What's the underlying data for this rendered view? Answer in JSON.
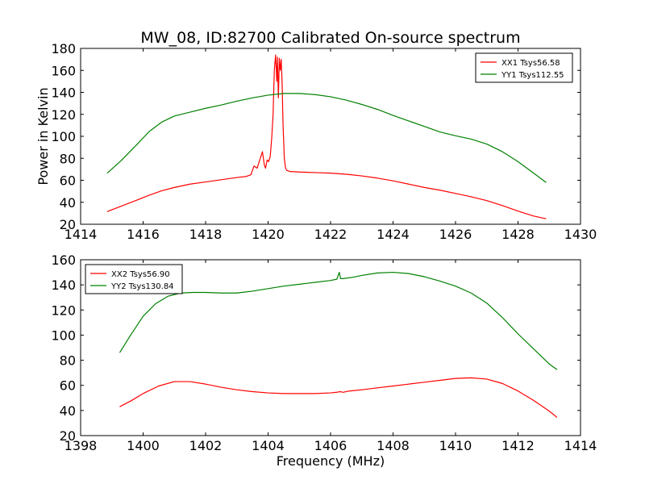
{
  "figure": {
    "title": "MW_08, ID:82700 Calibrated On-source spectrum"
  },
  "chart_data": [
    {
      "type": "line",
      "title": "MW_08, ID:82700 Calibrated On-source spectrum",
      "xlabel": "",
      "ylabel": "Power in Kelvin",
      "xlim": [
        1414,
        1430
      ],
      "ylim": [
        20,
        180
      ],
      "xticks": [
        1414,
        1416,
        1418,
        1420,
        1422,
        1424,
        1426,
        1428,
        1430
      ],
      "yticks": [
        20,
        40,
        60,
        80,
        100,
        120,
        140,
        160,
        180
      ],
      "legend": "top-right",
      "grid": false,
      "series": [
        {
          "name": "XX1 Tsys56.58",
          "color": "#ff0000",
          "x": [
            1414.85,
            1415.3,
            1415.8,
            1416.2,
            1416.6,
            1417.0,
            1417.5,
            1418.0,
            1418.5,
            1419.0,
            1419.3,
            1419.45,
            1419.55,
            1419.65,
            1419.75,
            1419.82,
            1419.88,
            1419.92,
            1419.97,
            1420.02,
            1420.07,
            1420.12,
            1420.16,
            1420.2,
            1420.24,
            1420.28,
            1420.3,
            1420.33,
            1420.36,
            1420.39,
            1420.42,
            1420.45,
            1420.48,
            1420.52,
            1420.56,
            1420.6,
            1420.7,
            1421.0,
            1421.5,
            1422.0,
            1422.5,
            1423.0,
            1423.5,
            1424.0,
            1424.5,
            1425.0,
            1425.5,
            1426.0,
            1426.5,
            1427.0,
            1427.5,
            1428.0,
            1428.5,
            1428.9
          ],
          "values": [
            31.5,
            36.5,
            42.0,
            46.5,
            50.5,
            53.5,
            56.5,
            58.5,
            60.5,
            62.5,
            63.5,
            65.0,
            73.0,
            71.0,
            80.0,
            86.0,
            74.0,
            71.0,
            78.5,
            77.0,
            82.0,
            100.0,
            120.0,
            160.0,
            174.0,
            150.0,
            172.0,
            135.0,
            171.0,
            160.0,
            170.0,
            148.0,
            110.0,
            80.0,
            71.0,
            69.0,
            68.0,
            67.5,
            67.0,
            66.5,
            65.5,
            64.0,
            62.0,
            59.5,
            56.5,
            53.5,
            51.0,
            48.0,
            45.0,
            41.5,
            37.0,
            32.0,
            27.5,
            25.0
          ]
        },
        {
          "name": "YY1 Tsys112.55",
          "color": "#008000",
          "x": [
            1414.85,
            1415.3,
            1415.8,
            1416.2,
            1416.6,
            1417.0,
            1417.5,
            1418.0,
            1418.5,
            1419.0,
            1419.5,
            1420.0,
            1420.5,
            1421.0,
            1421.5,
            1422.0,
            1422.5,
            1423.0,
            1423.5,
            1424.0,
            1424.5,
            1425.0,
            1425.5,
            1426.0,
            1426.5,
            1427.0,
            1427.5,
            1428.0,
            1428.5,
            1428.9
          ],
          "values": [
            66.5,
            78.0,
            92.5,
            104.5,
            113.0,
            118.5,
            122.0,
            125.5,
            128.5,
            132.0,
            135.0,
            137.5,
            139.0,
            139.0,
            138.0,
            136.0,
            133.0,
            129.0,
            124.5,
            119.0,
            114.0,
            109.0,
            104.0,
            100.5,
            97.5,
            93.0,
            86.0,
            77.0,
            66.5,
            58.0
          ]
        }
      ]
    },
    {
      "type": "line",
      "title": "",
      "xlabel": "Frequency (MHz)",
      "ylabel": "",
      "xlim": [
        1398,
        1414
      ],
      "ylim": [
        20,
        160
      ],
      "xticks": [
        1398,
        1400,
        1402,
        1404,
        1406,
        1408,
        1410,
        1412,
        1414
      ],
      "yticks": [
        20,
        40,
        60,
        80,
        100,
        120,
        140,
        160
      ],
      "legend": "top-left",
      "grid": false,
      "series": [
        {
          "name": "XX2 Tsys56.90",
          "color": "#ff0000",
          "x": [
            1399.25,
            1399.6,
            1400.0,
            1400.5,
            1401.0,
            1401.5,
            1402.0,
            1402.5,
            1403.0,
            1403.5,
            1404.0,
            1404.5,
            1405.0,
            1405.5,
            1406.0,
            1406.2,
            1406.3,
            1406.4,
            1406.6,
            1407.0,
            1407.5,
            1408.0,
            1408.5,
            1409.0,
            1409.5,
            1410.0,
            1410.5,
            1411.0,
            1411.5,
            1412.0,
            1412.5,
            1413.0,
            1413.25
          ],
          "values": [
            43.0,
            47.5,
            53.5,
            59.5,
            63.0,
            63.0,
            61.0,
            58.5,
            56.5,
            55.0,
            54.0,
            53.5,
            53.5,
            53.5,
            54.0,
            54.5,
            55.0,
            54.5,
            55.5,
            56.5,
            58.0,
            59.5,
            61.0,
            62.5,
            64.0,
            65.5,
            66.0,
            65.0,
            61.5,
            55.5,
            48.0,
            39.5,
            34.5
          ]
        },
        {
          "name": "YY2 Tsys130.84",
          "color": "#008000",
          "x": [
            1399.25,
            1399.6,
            1400.0,
            1400.4,
            1400.8,
            1401.2,
            1401.6,
            1402.0,
            1402.5,
            1403.0,
            1403.5,
            1404.0,
            1404.5,
            1405.0,
            1405.5,
            1406.0,
            1406.2,
            1406.28,
            1406.32,
            1406.4,
            1406.7,
            1407.0,
            1407.5,
            1408.0,
            1408.5,
            1409.0,
            1409.5,
            1410.0,
            1410.5,
            1411.0,
            1411.5,
            1412.0,
            1412.5,
            1413.0,
            1413.25
          ],
          "values": [
            86.0,
            100.0,
            115.0,
            125.0,
            131.0,
            133.5,
            134.0,
            134.0,
            133.5,
            133.5,
            135.0,
            137.0,
            139.0,
            140.5,
            142.0,
            143.5,
            144.5,
            150.0,
            145.0,
            145.0,
            146.0,
            147.5,
            149.5,
            150.0,
            149.0,
            146.5,
            143.0,
            139.0,
            133.5,
            125.5,
            114.0,
            101.0,
            89.0,
            77.0,
            72.5
          ]
        }
      ]
    }
  ]
}
